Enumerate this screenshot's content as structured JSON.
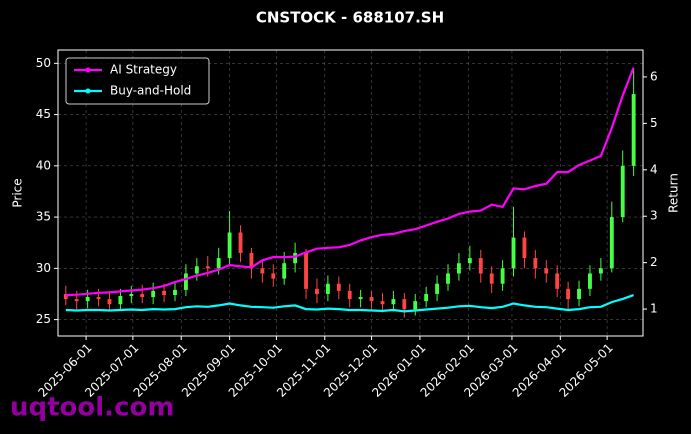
{
  "chart_data": {
    "type": "candlestick",
    "title": "CNSTOCK - 688107.SH",
    "ylabel": "Price",
    "y2label": "Return",
    "watermark": "uqtool.com",
    "x": [
      "2025-05-19",
      "2025-05-26",
      "2025-06-02",
      "2025-06-09",
      "2025-06-16",
      "2025-06-23",
      "2025-06-30",
      "2025-07-07",
      "2025-07-14",
      "2025-07-21",
      "2025-07-28",
      "2025-08-04",
      "2025-08-11",
      "2025-08-18",
      "2025-08-25",
      "2025-09-01",
      "2025-09-08",
      "2025-09-15",
      "2025-09-22",
      "2025-09-29",
      "2025-10-06",
      "2025-10-13",
      "2025-10-20",
      "2025-10-27",
      "2025-11-03",
      "2025-11-10",
      "2025-11-17",
      "2025-11-24",
      "2025-12-01",
      "2025-12-08",
      "2025-12-15",
      "2025-12-22",
      "2025-12-29",
      "2026-01-05",
      "2026-01-12",
      "2026-01-19",
      "2026-01-26",
      "2026-02-02",
      "2026-02-09",
      "2026-02-16",
      "2026-02-23",
      "2026-03-02",
      "2026-03-09",
      "2026-03-16",
      "2026-03-23",
      "2026-03-30",
      "2026-04-06",
      "2026-04-13",
      "2026-04-20",
      "2026-04-27",
      "2026-05-04",
      "2026-05-11",
      "2026-05-18"
    ],
    "open": [
      27.5,
      27.0,
      26.8,
      27.2,
      27.0,
      26.5,
      27.3,
      27.5,
      27.2,
      27.8,
      27.4,
      27.9,
      29.5,
      30.2,
      30.0,
      31.0,
      33.5,
      31.5,
      30.0,
      29.5,
      29.0,
      30.5,
      31.5,
      28.0,
      27.5,
      28.5,
      27.8,
      27.0,
      27.2,
      26.8,
      26.5,
      27.0,
      26.0,
      26.8,
      27.5,
      28.5,
      29.5,
      30.5,
      31.0,
      29.5,
      28.5,
      30.0,
      33.0,
      31.0,
      30.0,
      29.5,
      28.0,
      27.0,
      28.0,
      29.5,
      30.0,
      35.0,
      40.0
    ],
    "high": [
      28.3,
      27.8,
      27.9,
      28.0,
      27.8,
      28.0,
      28.3,
      28.4,
      28.6,
      28.5,
      28.6,
      30.4,
      31.0,
      31.2,
      32.0,
      35.6,
      34.2,
      32.0,
      30.8,
      30.4,
      31.6,
      32.5,
      31.9,
      29.0,
      29.3,
      29.2,
      28.5,
      27.9,
      27.8,
      27.6,
      27.8,
      27.6,
      27.5,
      28.2,
      29.3,
      30.4,
      31.5,
      32.2,
      31.8,
      30.2,
      30.8,
      36.0,
      33.6,
      31.8,
      30.8,
      30.3,
      28.7,
      28.8,
      30.3,
      31.0,
      36.5,
      41.5,
      49.5
    ],
    "low": [
      26.4,
      26.0,
      26.1,
      26.3,
      25.8,
      25.9,
      26.6,
      26.6,
      26.5,
      26.7,
      26.8,
      27.3,
      28.8,
      29.2,
      29.4,
      30.4,
      30.6,
      29.0,
      28.6,
      28.2,
      28.4,
      29.6,
      27.0,
      26.6,
      26.8,
      27.0,
      26.2,
      26.2,
      26.0,
      25.7,
      25.8,
      25.2,
      25.4,
      26.2,
      26.8,
      27.8,
      28.8,
      29.8,
      28.6,
      27.6,
      27.8,
      29.2,
      30.0,
      29.0,
      28.6,
      27.2,
      26.0,
      26.3,
      27.3,
      28.8,
      29.6,
      34.5,
      39.0
    ],
    "close": [
      27.0,
      26.8,
      27.2,
      27.0,
      26.5,
      27.3,
      27.5,
      27.2,
      27.8,
      27.4,
      27.9,
      29.5,
      30.2,
      30.0,
      31.0,
      33.5,
      31.5,
      30.0,
      29.5,
      29.0,
      30.5,
      31.5,
      28.0,
      27.5,
      28.5,
      27.8,
      27.0,
      27.2,
      26.8,
      26.5,
      27.0,
      26.0,
      26.8,
      27.5,
      28.5,
      29.5,
      30.5,
      31.0,
      29.5,
      28.5,
      30.0,
      33.0,
      31.0,
      30.0,
      29.5,
      28.0,
      27.0,
      28.0,
      29.5,
      30.0,
      35.0,
      40.0,
      47.0
    ],
    "up_color": "#44ff44",
    "down_color": "#ff4444",
    "series": [
      {
        "name": "AI Strategy",
        "color": "#ff00ff",
        "axis": "y2",
        "values": [
          1.3,
          1.31,
          1.33,
          1.35,
          1.36,
          1.38,
          1.4,
          1.42,
          1.45,
          1.5,
          1.58,
          1.65,
          1.72,
          1.78,
          1.85,
          1.95,
          1.92,
          1.9,
          2.05,
          2.12,
          2.12,
          2.13,
          2.22,
          2.3,
          2.32,
          2.33,
          2.38,
          2.48,
          2.55,
          2.6,
          2.62,
          2.68,
          2.72,
          2.8,
          2.88,
          2.95,
          3.05,
          3.1,
          3.12,
          3.25,
          3.2,
          3.6,
          3.58,
          3.65,
          3.7,
          3.95,
          3.95,
          4.1,
          4.2,
          4.3,
          4.9,
          5.6,
          6.2
        ]
      },
      {
        "name": "Buy-and-Hold",
        "color": "#00ffff",
        "axis": "y2",
        "values": [
          0.98,
          0.97,
          0.98,
          0.98,
          0.97,
          0.98,
          0.99,
          0.98,
          1.0,
          0.99,
          1.0,
          1.04,
          1.06,
          1.05,
          1.08,
          1.12,
          1.08,
          1.05,
          1.04,
          1.03,
          1.06,
          1.08,
          1.0,
          0.99,
          1.01,
          1.0,
          0.98,
          0.98,
          0.97,
          0.96,
          0.98,
          0.95,
          0.97,
          0.99,
          1.01,
          1.03,
          1.06,
          1.07,
          1.04,
          1.02,
          1.05,
          1.12,
          1.08,
          1.05,
          1.04,
          1.01,
          0.98,
          1.0,
          1.04,
          1.05,
          1.15,
          1.22,
          1.3
        ]
      }
    ],
    "xlim": [
      "2025-05-14",
      "2026-05-24"
    ],
    "xticks": [
      "2025-06-01",
      "2025-07-01",
      "2025-08-01",
      "2025-09-01",
      "2025-10-01",
      "2025-11-01",
      "2025-12-01",
      "2026-01-01",
      "2026-02-01",
      "2026-03-01",
      "2026-04-01",
      "2026-05-01"
    ],
    "ylim": [
      23.4,
      51.3
    ],
    "yticks": [
      25,
      30,
      35,
      40,
      45,
      50
    ],
    "y2lim": [
      0.42,
      6.58
    ],
    "y2ticks": [
      1,
      2,
      3,
      4,
      5,
      6
    ],
    "grid": true,
    "legend": "upper left"
  }
}
